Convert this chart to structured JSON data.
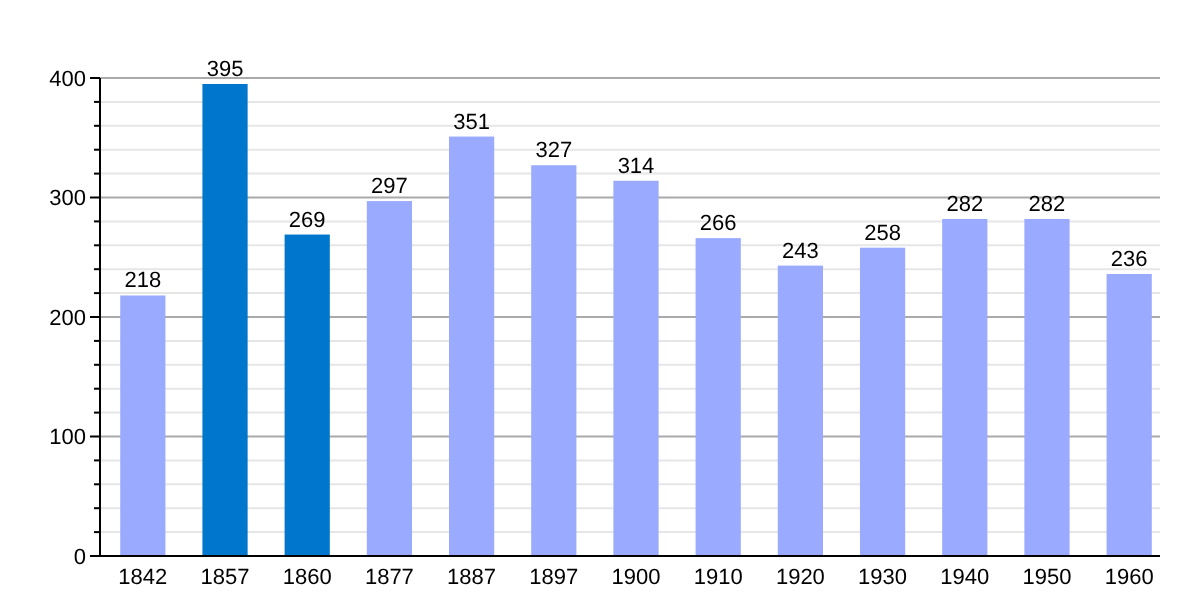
{
  "chart_data": {
    "type": "bar",
    "categories": [
      "1842",
      "1857",
      "1860",
      "1877",
      "1887",
      "1897",
      "1900",
      "1910",
      "1920",
      "1930",
      "1940",
      "1950",
      "1960"
    ],
    "values": [
      218,
      395,
      269,
      297,
      351,
      327,
      314,
      266,
      243,
      258,
      282,
      282,
      236
    ],
    "colors": [
      "#99aaff",
      "#0077cc",
      "#0077cc",
      "#99aaff",
      "#99aaff",
      "#99aaff",
      "#99aaff",
      "#99aaff",
      "#99aaff",
      "#99aaff",
      "#99aaff",
      "#99aaff",
      "#99aaff"
    ],
    "ylim": [
      0,
      400
    ],
    "yticks": [
      0,
      {
        "value": 20,
        "label": null
      },
      {
        "value": 40,
        "label": null
      },
      {
        "value": 60,
        "label": null
      },
      {
        "value": 80,
        "label": null
      },
      100,
      {
        "value": 120,
        "label": null
      },
      {
        "value": 140,
        "label": null
      },
      {
        "value": 160,
        "label": null
      },
      {
        "value": 180,
        "label": null
      },
      200,
      {
        "value": 220,
        "label": null
      },
      {
        "value": 240,
        "label": null
      },
      {
        "value": 260,
        "label": null
      },
      {
        "value": 280,
        "label": null
      },
      300,
      {
        "value": 320,
        "label": null
      },
      {
        "value": 340,
        "label": null
      },
      {
        "value": 360,
        "label": null
      },
      {
        "value": 380,
        "label": null
      },
      400
    ],
    "grid": true,
    "data_labels": true
  }
}
